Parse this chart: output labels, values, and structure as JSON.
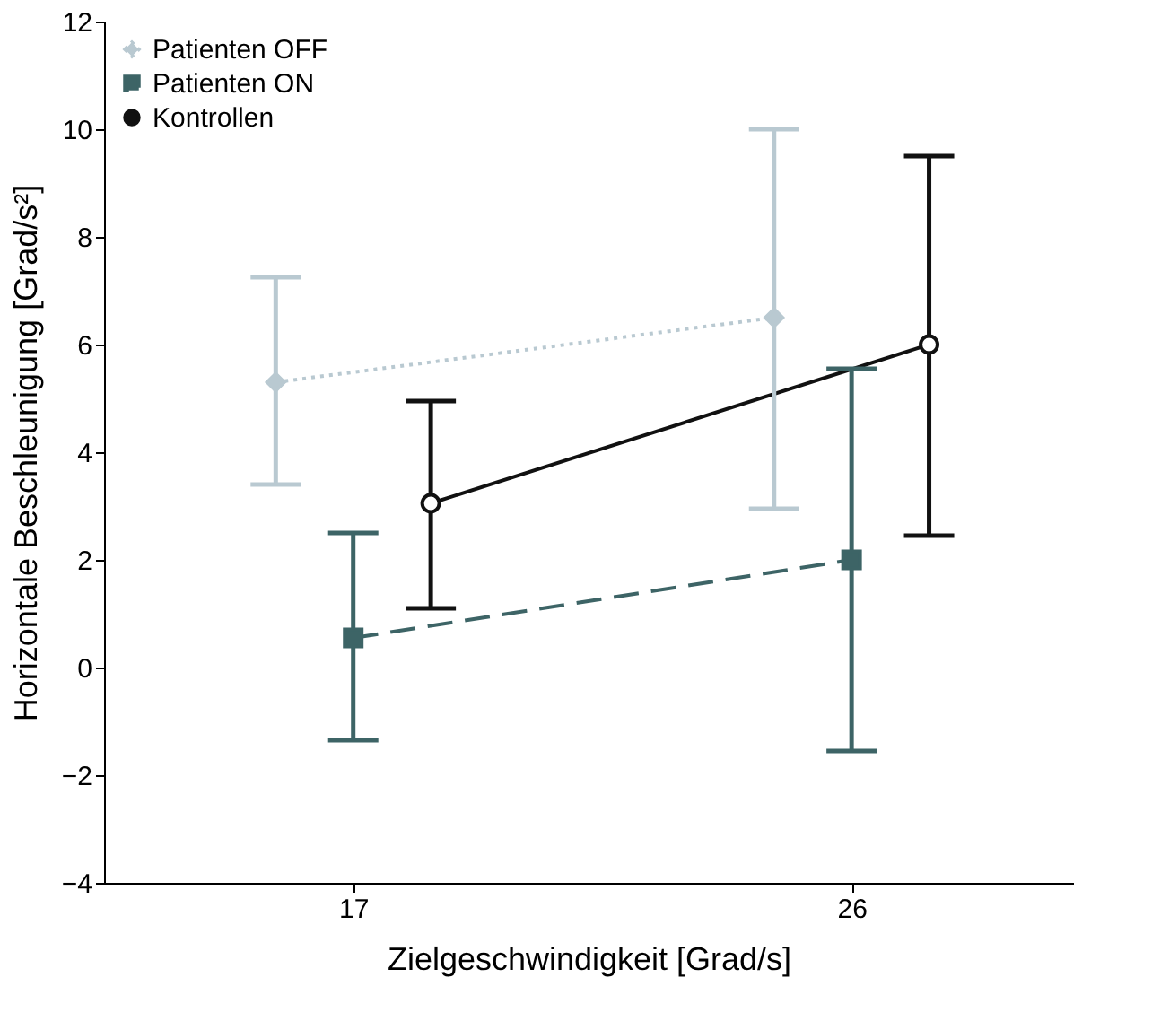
{
  "chart_data": {
    "type": "line",
    "xlabel": "Zielgeschwindigkeit [Grad/s]",
    "ylabel": "Horizontale Beschleunigung [Grad/s²]",
    "xlim": [
      12.5,
      30
    ],
    "xticks": [
      17,
      26
    ],
    "ylim": [
      -4,
      12
    ],
    "yticks": [
      -4,
      -2,
      0,
      2,
      4,
      6,
      8,
      10,
      12
    ],
    "grid": false,
    "legend": "top left",
    "series": [
      {
        "name": "Patienten OFF",
        "color": "#b9c9d1",
        "x": [
          15.6,
          24.6
        ],
        "values": [
          5.3,
          6.5
        ],
        "errors": [
          [
            3.4,
            7.25
          ],
          [
            2.95,
            10.0
          ]
        ],
        "marker": "diamond",
        "line_style": "dotted"
      },
      {
        "name": "Patienten ON",
        "color": "#3d6466",
        "x": [
          17,
          26
        ],
        "values": [
          0.55,
          2.0
        ],
        "errors": [
          [
            -1.35,
            2.5
          ],
          [
            -1.55,
            5.55
          ]
        ],
        "marker": "square",
        "line_style": "dashed"
      },
      {
        "name": "Kontrollen",
        "color": "#111111",
        "x": [
          18.4,
          27.4
        ],
        "values": [
          3.05,
          6.0
        ],
        "errors": [
          [
            1.1,
            4.95
          ],
          [
            2.45,
            9.5
          ]
        ],
        "marker": "circle",
        "line_style": "solid"
      }
    ]
  }
}
